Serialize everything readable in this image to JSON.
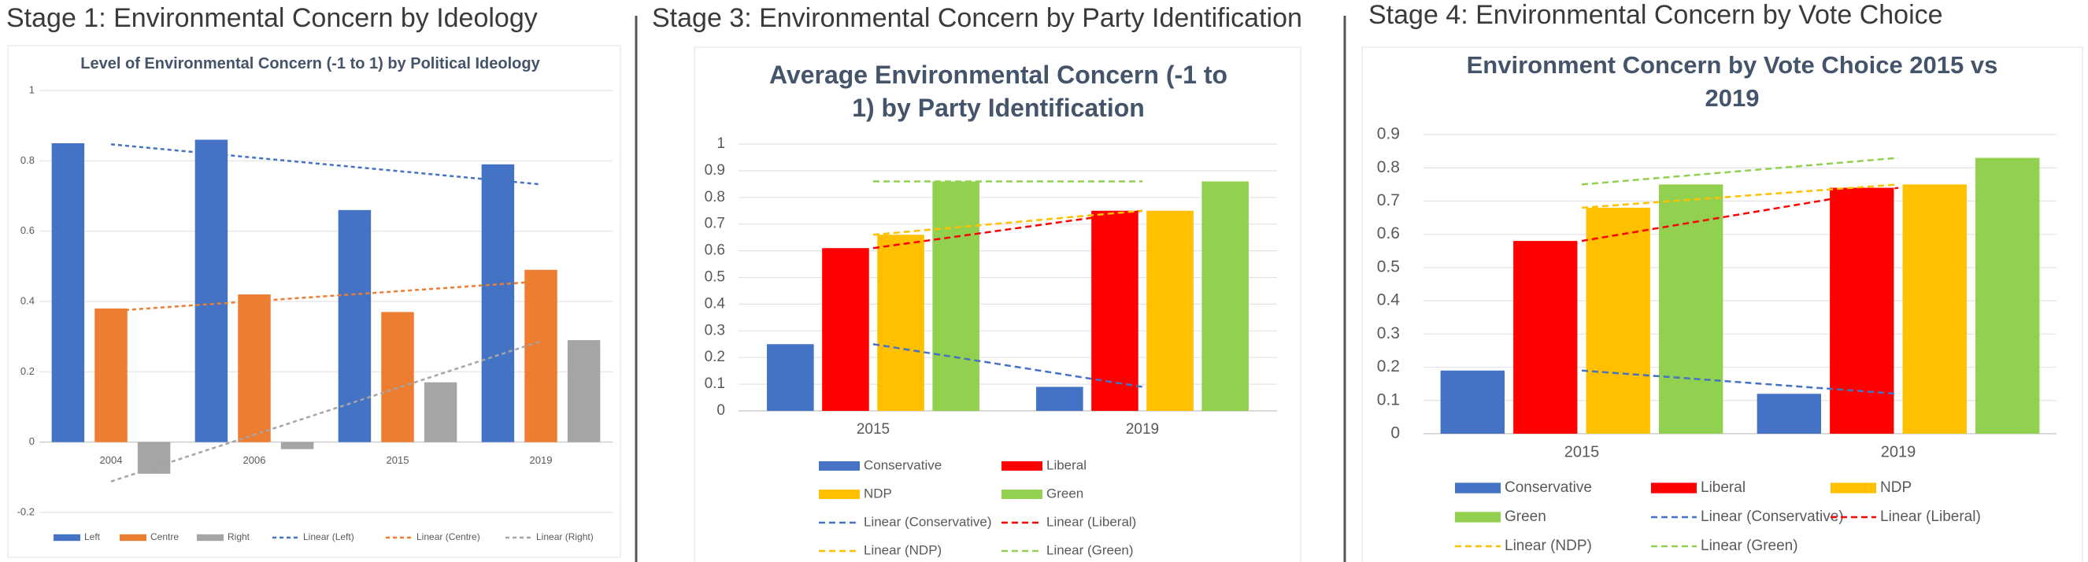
{
  "chart_data": [
    {
      "type": "bar",
      "heading": "Stage 1: Environmental Concern by Ideology",
      "title": "Level of Environmental Concern (-1 to 1) by Political Ideology",
      "categories": [
        "2004",
        "2006",
        "2015",
        "2019"
      ],
      "series": [
        {
          "name": "Left",
          "color": "#4472c4",
          "values": [
            0.85,
            0.86,
            0.66,
            0.79
          ],
          "trend_name": "Linear (Left)"
        },
        {
          "name": "Centre",
          "color": "#ed7d31",
          "values": [
            0.38,
            0.42,
            0.37,
            0.49
          ],
          "trend_name": "Linear (Centre)"
        },
        {
          "name": "Right",
          "color": "#a5a5a5",
          "values": [
            -0.09,
            -0.02,
            0.17,
            0.29
          ],
          "trend_name": "Linear (Right)"
        }
      ],
      "ylim": [
        -0.2,
        1
      ],
      "yticks": [
        -0.2,
        0,
        0.2,
        0.4,
        0.6,
        0.8,
        1
      ],
      "grid": true,
      "legend": "bottom"
    },
    {
      "type": "bar",
      "heading": "Stage 3: Environmental Concern by Party Identification",
      "title": "Average Environmental Concern (-1 to 1) by Party Identification",
      "categories": [
        "2015",
        "2019"
      ],
      "series": [
        {
          "name": "Conservative",
          "color": "#4472c4",
          "values": [
            0.25,
            0.09
          ],
          "trend_name": "Linear (Conservative)"
        },
        {
          "name": "Liberal",
          "color": "#ff0000",
          "values": [
            0.61,
            0.75
          ],
          "trend_name": "Linear (Liberal)"
        },
        {
          "name": "NDP",
          "color": "#ffc000",
          "values": [
            0.66,
            0.75
          ],
          "trend_name": "Linear (NDP)"
        },
        {
          "name": "Green",
          "color": "#92d050",
          "values": [
            0.86,
            0.86
          ],
          "trend_name": "Linear (Green)"
        }
      ],
      "ylim": [
        0,
        1
      ],
      "yticks": [
        0,
        0.1,
        0.2,
        0.3,
        0.4,
        0.5,
        0.6,
        0.7,
        0.8,
        0.9,
        1
      ],
      "grid": true,
      "legend": "bottom"
    },
    {
      "type": "bar",
      "heading": "Stage 4: Environmental Concern by Vote Choice",
      "title": "Environment Concern by Vote Choice 2015 vs 2019",
      "categories": [
        "2015",
        "2019"
      ],
      "series": [
        {
          "name": "Conservative",
          "color": "#4472c4",
          "values": [
            0.19,
            0.12
          ],
          "trend_name": "Linear (Conservative)"
        },
        {
          "name": "Liberal",
          "color": "#ff0000",
          "values": [
            0.58,
            0.74
          ],
          "trend_name": "Linear (Liberal)"
        },
        {
          "name": "NDP",
          "color": "#ffc000",
          "values": [
            0.68,
            0.75
          ],
          "trend_name": "Linear (NDP)"
        },
        {
          "name": "Green",
          "color": "#92d050",
          "values": [
            0.75,
            0.83
          ],
          "trend_name": "Linear (Green)"
        }
      ],
      "ylim": [
        0,
        0.9
      ],
      "yticks": [
        0,
        0.1,
        0.2,
        0.3,
        0.4,
        0.5,
        0.6,
        0.7,
        0.8,
        0.9
      ],
      "grid": true,
      "legend": "bottom"
    }
  ]
}
